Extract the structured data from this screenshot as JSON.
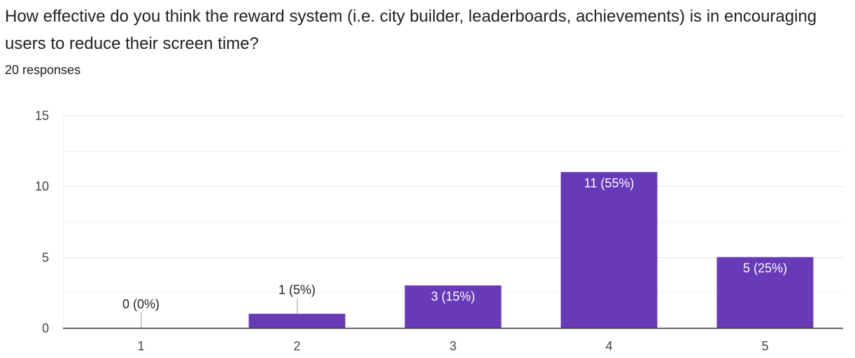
{
  "question": {
    "title": "How effective do you think the reward system (i.e. city builder, leaderboards, achievements) is in encouraging users to reduce their screen time?",
    "responses": "20 responses"
  },
  "chart_data": {
    "type": "bar",
    "title": "",
    "xlabel": "",
    "ylabel": "",
    "categories": [
      "1",
      "2",
      "3",
      "4",
      "5"
    ],
    "values": [
      0,
      1,
      3,
      11,
      5
    ],
    "data_labels": [
      "0 (0%)",
      "1 (5%)",
      "3 (15%)",
      "11 (55%)",
      "5 (25%)"
    ],
    "ylim": [
      0,
      15
    ],
    "yticks": [
      0,
      5,
      10,
      15
    ],
    "grid": true,
    "colors": {
      "bar": "#673ab7",
      "grid": "#e5e5e5",
      "axis": "#333333"
    }
  }
}
